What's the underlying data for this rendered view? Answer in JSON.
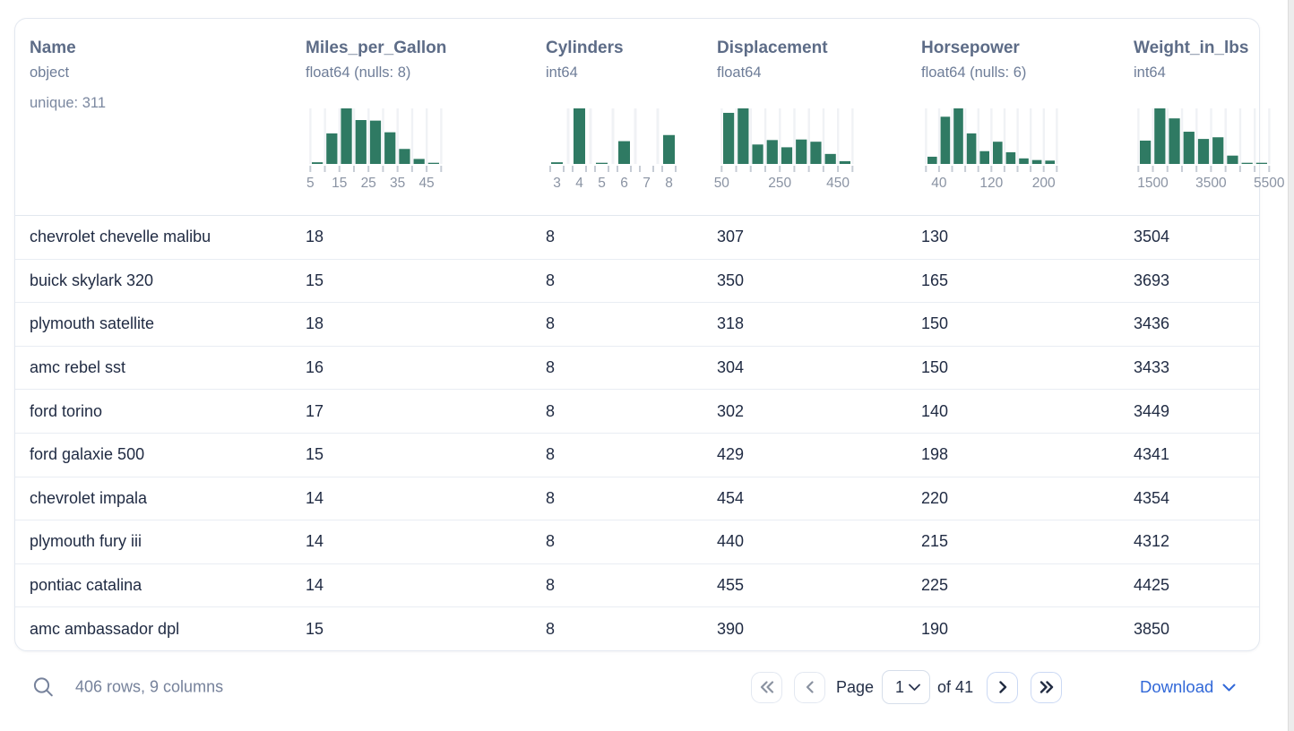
{
  "table": {
    "columns": [
      {
        "name": "Name",
        "type": "object",
        "extra": "unique: 311",
        "histogram": null
      },
      {
        "name": "Miles_per_Gallon",
        "type": "float64 (nulls: 8)",
        "histogram": {
          "mode": "continuous",
          "bars": [
            0.03,
            0.55,
            1.0,
            0.79,
            0.78,
            0.57,
            0.27,
            0.09,
            0.02
          ],
          "tick_labels": [
            {
              "tick": 0,
              "text": "5"
            },
            {
              "tick": 2,
              "text": "15"
            },
            {
              "tick": 4,
              "text": "25"
            },
            {
              "tick": 6,
              "text": "35"
            },
            {
              "tick": 8,
              "text": "45"
            }
          ]
        }
      },
      {
        "name": "Cylinders",
        "type": "int64",
        "histogram": {
          "mode": "discrete",
          "bars": [
            0.03,
            1.0,
            0.02,
            0.41,
            0,
            0.52
          ],
          "categories": [
            "3",
            "4",
            "5",
            "6",
            "7",
            "8"
          ]
        }
      },
      {
        "name": "Displacement",
        "type": "float64",
        "histogram": {
          "mode": "continuous",
          "bars": [
            0.92,
            1.0,
            0.35,
            0.43,
            0.3,
            0.44,
            0.4,
            0.18,
            0.05
          ],
          "tick_labels": [
            {
              "tick": 0,
              "text": "50"
            },
            {
              "tick": 4,
              "text": "250"
            },
            {
              "tick": 8,
              "text": "450"
            }
          ]
        }
      },
      {
        "name": "Horsepower",
        "type": "float64 (nulls: 6)",
        "histogram": {
          "mode": "continuous",
          "bars": [
            0.13,
            0.85,
            1.0,
            0.55,
            0.23,
            0.4,
            0.21,
            0.1,
            0.07,
            0.06
          ],
          "tick_labels": [
            {
              "tick": 1,
              "text": "40"
            },
            {
              "tick": 5,
              "text": "120"
            },
            {
              "tick": 9,
              "text": "200"
            }
          ]
        }
      },
      {
        "name": "Weight_in_lbs",
        "type": "int64",
        "histogram": {
          "mode": "continuous",
          "bars": [
            0.42,
            1.0,
            0.82,
            0.58,
            0.45,
            0.48,
            0.15,
            0.02,
            0.02
          ],
          "tick_labels": [
            {
              "tick": 1,
              "text": "1500"
            },
            {
              "tick": 5,
              "text": "3500"
            },
            {
              "tick": 9,
              "text": "5500"
            }
          ]
        }
      }
    ],
    "rows": [
      [
        "chevrolet chevelle malibu",
        "18",
        "8",
        "307",
        "130",
        "3504"
      ],
      [
        "buick skylark 320",
        "15",
        "8",
        "350",
        "165",
        "3693"
      ],
      [
        "plymouth satellite",
        "18",
        "8",
        "318",
        "150",
        "3436"
      ],
      [
        "amc rebel sst",
        "16",
        "8",
        "304",
        "150",
        "3433"
      ],
      [
        "ford torino",
        "17",
        "8",
        "302",
        "140",
        "3449"
      ],
      [
        "ford galaxie 500",
        "15",
        "8",
        "429",
        "198",
        "4341"
      ],
      [
        "chevrolet impala",
        "14",
        "8",
        "454",
        "220",
        "4354"
      ],
      [
        "plymouth fury iii",
        "14",
        "8",
        "440",
        "215",
        "4312"
      ],
      [
        "pontiac catalina",
        "14",
        "8",
        "455",
        "225",
        "4425"
      ],
      [
        "amc ambassador dpl",
        "15",
        "8",
        "390",
        "190",
        "3850"
      ]
    ]
  },
  "footer": {
    "count": "406 rows, 9 columns",
    "page_label": "Page",
    "page_value": "1",
    "of_label": "of 41",
    "download_label": "Download"
  },
  "colors": {
    "hist_bar": "#2f7a63",
    "hist_grid": "#f0f2f5",
    "hist_tick": "#c6ccd5",
    "hist_label": "#8a93a3",
    "download_blue": "#3168d8",
    "arrow_disabled": "#8b93a1",
    "arrow_enabled": "#222c42",
    "footer_gray": "#76829b"
  }
}
